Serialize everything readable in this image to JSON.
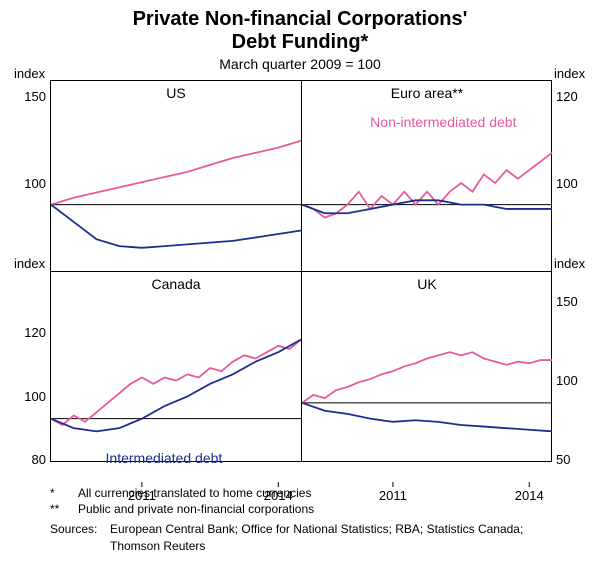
{
  "title_line1": "Private Non-financial Corporations'",
  "title_line2": "Debt Funding*",
  "subtitle": "March quarter 2009 = 100",
  "axis_label": "index",
  "colors": {
    "intermediated": "#1a2f8f",
    "non_intermediated": "#e85a9e",
    "grid": "#000000",
    "background": "#ffffff"
  },
  "line_width": 1.8,
  "panels": {
    "us": {
      "title": "US",
      "ylim": [
        50,
        160
      ],
      "yticks": [
        100,
        150
      ],
      "xlim": [
        2009,
        2014.5
      ],
      "xticks": [],
      "non_intermediated": {
        "x": [
          2009,
          2009.5,
          2010,
          2010.5,
          2011,
          2011.5,
          2012,
          2012.5,
          2013,
          2013.5,
          2014,
          2014.5
        ],
        "y": [
          100,
          104,
          107,
          110,
          113,
          116,
          119,
          123,
          127,
          130,
          133,
          137
        ]
      },
      "intermediated": {
        "x": [
          2009,
          2009.5,
          2010,
          2010.5,
          2011,
          2011.5,
          2012,
          2012.5,
          2013,
          2013.5,
          2014,
          2014.5
        ],
        "y": [
          100,
          90,
          80,
          76,
          75,
          76,
          77,
          78,
          79,
          81,
          83,
          85
        ]
      }
    },
    "euro": {
      "title": "Euro area**",
      "ylim": [
        80,
        124
      ],
      "yticks": [
        100,
        120
      ],
      "xlim": [
        2009,
        2014.5
      ],
      "xticks": [],
      "non_intermediated": {
        "x": [
          2009,
          2009.25,
          2009.5,
          2009.75,
          2010,
          2010.25,
          2010.5,
          2010.75,
          2011,
          2011.25,
          2011.5,
          2011.75,
          2012,
          2012.25,
          2012.5,
          2012.75,
          2013,
          2013.25,
          2013.5,
          2013.75,
          2014,
          2014.25,
          2014.5
        ],
        "y": [
          100,
          99,
          97,
          98,
          100,
          103,
          99,
          102,
          100,
          103,
          100,
          103,
          100,
          103,
          105,
          103,
          107,
          105,
          108,
          106,
          108,
          110,
          112
        ]
      },
      "intermediated": {
        "x": [
          2009,
          2009.5,
          2010,
          2010.5,
          2011,
          2011.5,
          2012,
          2012.5,
          2013,
          2013.5,
          2014,
          2014.5
        ],
        "y": [
          100,
          98,
          98,
          99,
          100,
          101,
          101,
          100,
          100,
          99,
          99,
          99
        ]
      },
      "series_label": {
        "text": "Non-intermediated debt",
        "color": "#e85a9e",
        "x": 2010.5,
        "y": 118
      }
    },
    "canada": {
      "title": "Canada",
      "ylim": [
        80,
        140
      ],
      "yticks": [
        100,
        120
      ],
      "xlim": [
        2009,
        2014.5
      ],
      "xticks": [
        2011,
        2014
      ],
      "non_intermediated": {
        "x": [
          2009,
          2009.25,
          2009.5,
          2009.75,
          2010,
          2010.25,
          2010.5,
          2010.75,
          2011,
          2011.25,
          2011.5,
          2011.75,
          2012,
          2012.25,
          2012.5,
          2012.75,
          2013,
          2013.25,
          2013.5,
          2013.75,
          2014,
          2014.25,
          2014.5
        ],
        "y": [
          100,
          98,
          101,
          99,
          102,
          105,
          108,
          111,
          113,
          111,
          113,
          112,
          114,
          113,
          116,
          115,
          118,
          120,
          119,
          121,
          123,
          122,
          125
        ]
      },
      "intermediated": {
        "x": [
          2009,
          2009.5,
          2010,
          2010.5,
          2011,
          2011.5,
          2012,
          2012.5,
          2013,
          2013.5,
          2014,
          2014.5
        ],
        "y": [
          100,
          97,
          96,
          97,
          100,
          104,
          107,
          111,
          114,
          118,
          121,
          125
        ]
      },
      "series_label": {
        "text": "Intermediated debt",
        "color": "#1a2f8f",
        "x": 2010.2,
        "y": 86
      }
    },
    "uk": {
      "title": "UK",
      "ylim": [
        50,
        170
      ],
      "yticks": [
        100,
        150
      ],
      "xlim": [
        2009,
        2014.5
      ],
      "xticks": [
        2011,
        2014
      ],
      "non_intermediated": {
        "x": [
          2009,
          2009.25,
          2009.5,
          2009.75,
          2010,
          2010.25,
          2010.5,
          2010.75,
          2011,
          2011.25,
          2011.5,
          2011.75,
          2012,
          2012.25,
          2012.5,
          2012.75,
          2013,
          2013.25,
          2013.5,
          2013.75,
          2014,
          2014.25,
          2014.5
        ],
        "y": [
          100,
          105,
          103,
          108,
          110,
          113,
          115,
          118,
          120,
          123,
          125,
          128,
          130,
          132,
          130,
          132,
          128,
          126,
          124,
          126,
          125,
          127,
          127
        ]
      },
      "intermediated": {
        "x": [
          2009,
          2009.5,
          2010,
          2010.5,
          2011,
          2011.5,
          2012,
          2012.5,
          2013,
          2013.5,
          2014,
          2014.5
        ],
        "y": [
          100,
          95,
          93,
          90,
          88,
          89,
          88,
          86,
          85,
          84,
          83,
          82
        ]
      }
    }
  },
  "notes": {
    "star1_mark": "*",
    "star1": "All currencies translated to home currencies",
    "star2_mark": "**",
    "star2": "Public and private non-financial corporations",
    "sources_label": "Sources:",
    "sources": "European Central Bank; Office for National Statistics; RBA; Statistics Canada; Thomson Reuters"
  }
}
